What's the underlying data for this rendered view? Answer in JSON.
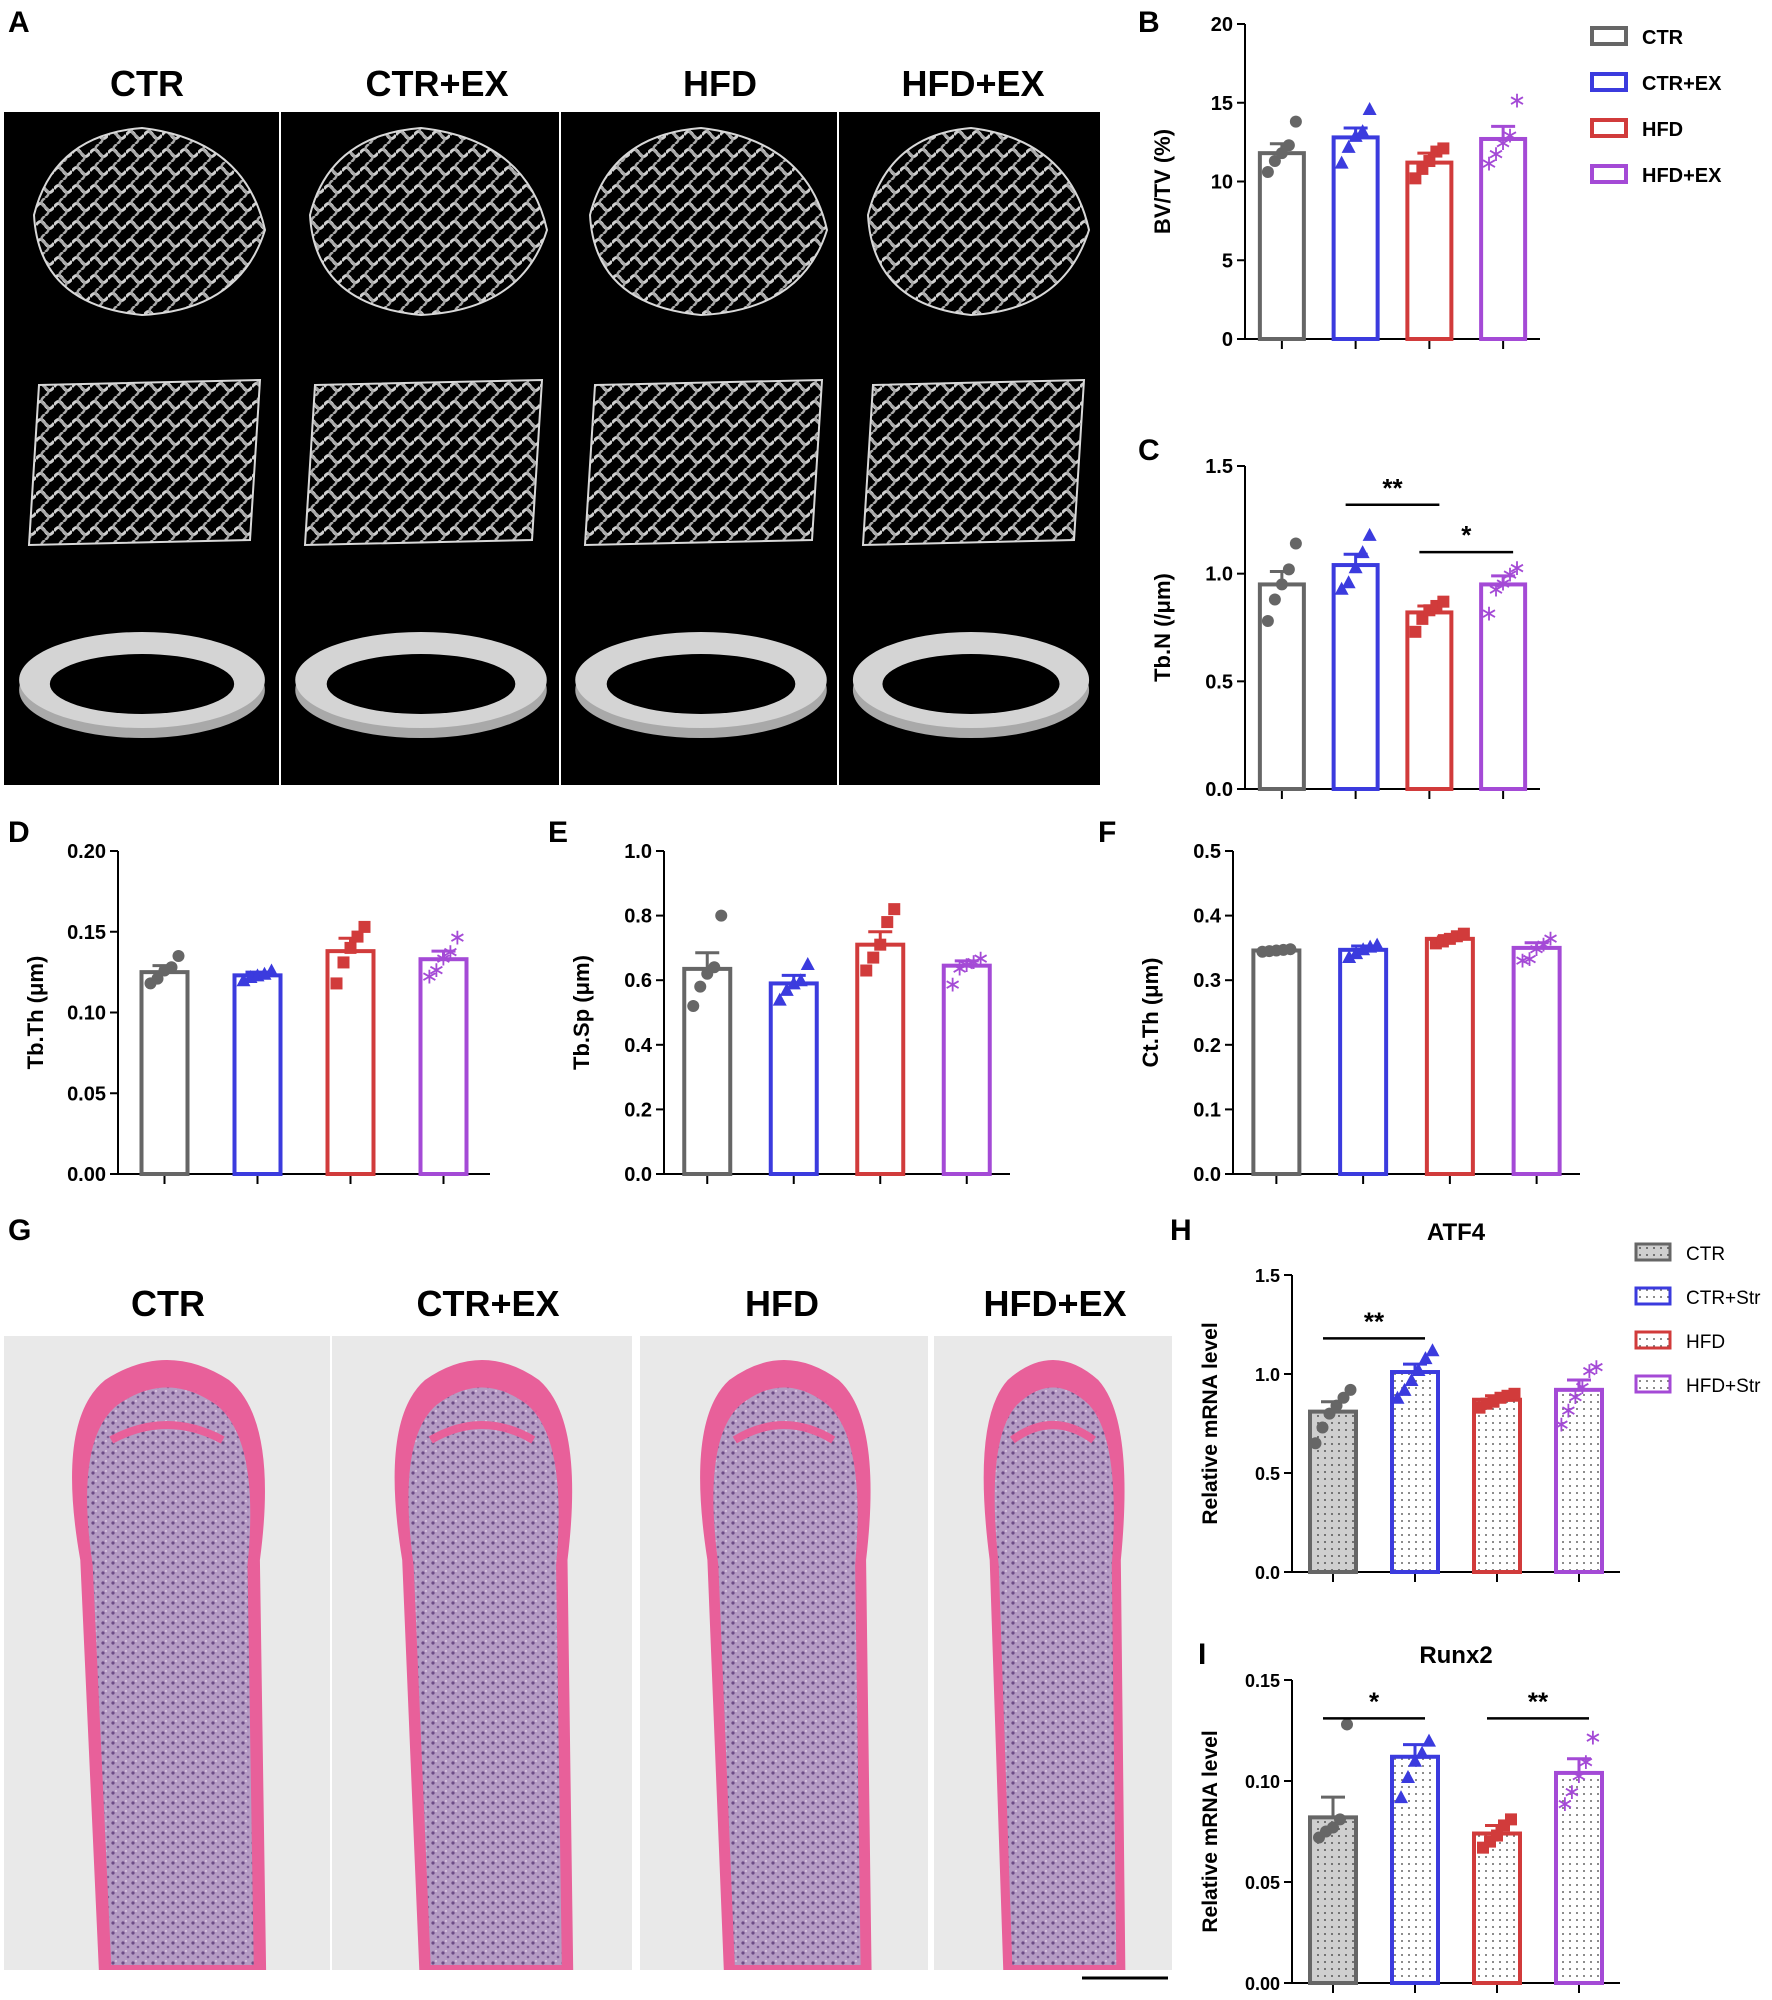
{
  "panel_letters": {
    "a": "A",
    "b": "B",
    "c": "C",
    "d": "D",
    "e": "E",
    "f": "F",
    "g": "G",
    "h": "H",
    "i": "I"
  },
  "micro_ct_groups": [
    "CTR",
    "CTR+EX",
    "HFD",
    "HFD+EX"
  ],
  "histology_groups": [
    "CTR",
    "CTR+EX",
    "HFD",
    "HFD+EX"
  ],
  "legend_top": [
    "CTR",
    "CTR+EX",
    "HFD",
    "HFD+EX"
  ],
  "legend_bottom": [
    "CTR",
    "CTR+Str",
    "HFD",
    "HFD+Str"
  ],
  "colors": {
    "CTR": "#666666",
    "CTR_EX": "#3b3bde",
    "HFD": "#d13b3b",
    "HFD_EX": "#a44ad6",
    "text": "#000000",
    "background": "#000000",
    "bone": "#bfbfbf",
    "stain_pink": "#e8609a",
    "stain_purple": "#8a6a9e"
  },
  "chart_data": [
    {
      "id": "B",
      "type": "bar",
      "ylabel": "BV/TV (%)",
      "ylim": [
        0,
        20
      ],
      "yticks": [
        "0",
        "5",
        "10",
        "15",
        "20"
      ],
      "values": [
        11.8,
        12.8,
        11.2,
        12.7
      ],
      "errors": [
        0.6,
        0.6,
        0.6,
        0.8
      ],
      "points": [
        [
          10.6,
          11.3,
          11.8,
          12.3,
          13.8
        ],
        [
          11.2,
          12.2,
          12.9,
          13.2,
          14.6
        ],
        [
          10.2,
          10.8,
          11.3,
          11.9,
          12.1
        ],
        [
          11.2,
          11.8,
          12.5,
          13.0,
          15.2
        ]
      ],
      "markers": [
        "circle",
        "triangle",
        "square",
        "star"
      ],
      "brackets": []
    },
    {
      "id": "C",
      "type": "bar",
      "ylabel": "Tb.N (/μm)",
      "ylim": [
        0,
        1.5
      ],
      "yticks": [
        "0.0",
        "0.5",
        "1.0",
        "1.5"
      ],
      "values": [
        0.95,
        1.04,
        0.82,
        0.95
      ],
      "errors": [
        0.06,
        0.05,
        0.03,
        0.04
      ],
      "points": [
        [
          0.78,
          0.88,
          0.95,
          1.02,
          1.14
        ],
        [
          0.93,
          0.96,
          1.03,
          1.1,
          1.18
        ],
        [
          0.73,
          0.79,
          0.83,
          0.85,
          0.87
        ],
        [
          0.82,
          0.93,
          0.96,
          1.0,
          1.03
        ]
      ],
      "markers": [
        "circle",
        "triangle",
        "square",
        "star"
      ],
      "brackets": [
        {
          "from": 1,
          "to": 2,
          "y": 1.32,
          "label": "**"
        },
        {
          "from": 2,
          "to": 3,
          "y": 1.1,
          "label": "*"
        }
      ]
    },
    {
      "id": "D",
      "type": "bar",
      "ylabel": "Tb.Th (μm)",
      "ylim": [
        0,
        0.2
      ],
      "yticks": [
        "0.00",
        "0.05",
        "0.10",
        "0.15",
        "0.20"
      ],
      "values": [
        0.125,
        0.123,
        0.138,
        0.133
      ],
      "errors": [
        0.004,
        0.002,
        0.008,
        0.005
      ],
      "points": [
        [
          0.118,
          0.121,
          0.126,
          0.128,
          0.135
        ],
        [
          0.12,
          0.122,
          0.123,
          0.124,
          0.126
        ],
        [
          0.118,
          0.131,
          0.14,
          0.147,
          0.153
        ],
        [
          0.123,
          0.127,
          0.134,
          0.138,
          0.147
        ]
      ],
      "markers": [
        "circle",
        "triangle",
        "square",
        "star"
      ],
      "brackets": []
    },
    {
      "id": "E",
      "type": "bar",
      "ylabel": "Tb.Sp (μm)",
      "ylim": [
        0,
        1.0
      ],
      "yticks": [
        "0.0",
        "0.2",
        "0.4",
        "0.6",
        "0.8",
        "1.0"
      ],
      "values": [
        0.635,
        0.59,
        0.71,
        0.645
      ],
      "errors": [
        0.05,
        0.025,
        0.04,
        0.015
      ],
      "points": [
        [
          0.52,
          0.58,
          0.62,
          0.64,
          0.8
        ],
        [
          0.54,
          0.57,
          0.59,
          0.6,
          0.65
        ],
        [
          0.63,
          0.67,
          0.71,
          0.78,
          0.82
        ],
        [
          0.59,
          0.64,
          0.65,
          0.66,
          0.67
        ]
      ],
      "markers": [
        "circle",
        "triangle",
        "square",
        "star"
      ],
      "brackets": []
    },
    {
      "id": "F",
      "type": "bar",
      "ylabel": "Ct.Th (μm)",
      "ylim": [
        0,
        0.5
      ],
      "yticks": [
        "0.0",
        "0.1",
        "0.2",
        "0.3",
        "0.4",
        "0.5"
      ],
      "values": [
        0.346,
        0.347,
        0.364,
        0.35
      ],
      "errors": [
        0.002,
        0.006,
        0.005,
        0.008
      ],
      "points": [
        [
          0.344,
          0.345,
          0.346,
          0.347,
          0.348
        ],
        [
          0.336,
          0.342,
          0.348,
          0.352,
          0.355
        ],
        [
          0.357,
          0.36,
          0.364,
          0.368,
          0.372
        ],
        [
          0.332,
          0.334,
          0.35,
          0.357,
          0.366
        ]
      ],
      "markers": [
        "circle",
        "triangle",
        "square",
        "star"
      ],
      "brackets": []
    },
    {
      "id": "H",
      "type": "bar",
      "title": "ATF4",
      "ylabel": "Relative mRNA level",
      "ylim": [
        0,
        1.5
      ],
      "yticks": [
        "0.0",
        "0.5",
        "1.0",
        "1.5"
      ],
      "values": [
        0.81,
        1.01,
        0.87,
        0.92
      ],
      "errors": [
        0.05,
        0.04,
        0.02,
        0.05
      ],
      "points": [
        [
          0.65,
          0.73,
          0.8,
          0.84,
          0.88,
          0.92
        ],
        [
          0.88,
          0.92,
          0.97,
          1.02,
          1.08,
          1.12
        ],
        [
          0.83,
          0.85,
          0.86,
          0.88,
          0.89,
          0.9
        ],
        [
          0.75,
          0.82,
          0.89,
          0.94,
          1.02,
          1.04
        ]
      ],
      "markers": [
        "circle",
        "triangle",
        "square",
        "star"
      ],
      "brackets": [
        {
          "from": 0,
          "to": 1,
          "y": 1.18,
          "label": "**"
        }
      ]
    },
    {
      "id": "I",
      "type": "bar",
      "title": "Runx2",
      "ylabel": "Relative mRNA level",
      "ylim": [
        0,
        0.15
      ],
      "yticks": [
        "0.00",
        "0.05",
        "0.10",
        "0.15"
      ],
      "values": [
        0.082,
        0.112,
        0.074,
        0.104
      ],
      "errors": [
        0.01,
        0.006,
        0.004,
        0.007
      ],
      "points": [
        [
          0.072,
          0.075,
          0.077,
          0.081,
          0.128
        ],
        [
          0.092,
          0.102,
          0.11,
          0.114,
          0.12
        ],
        [
          0.067,
          0.07,
          0.073,
          0.078,
          0.081
        ],
        [
          0.089,
          0.095,
          0.103,
          0.11,
          0.122
        ]
      ],
      "markers": [
        "circle",
        "triangle",
        "square",
        "star"
      ],
      "brackets": [
        {
          "from": 0,
          "to": 1,
          "y": 0.131,
          "label": "*"
        },
        {
          "from": 2,
          "to": 3,
          "y": 0.131,
          "label": "**"
        }
      ]
    }
  ]
}
